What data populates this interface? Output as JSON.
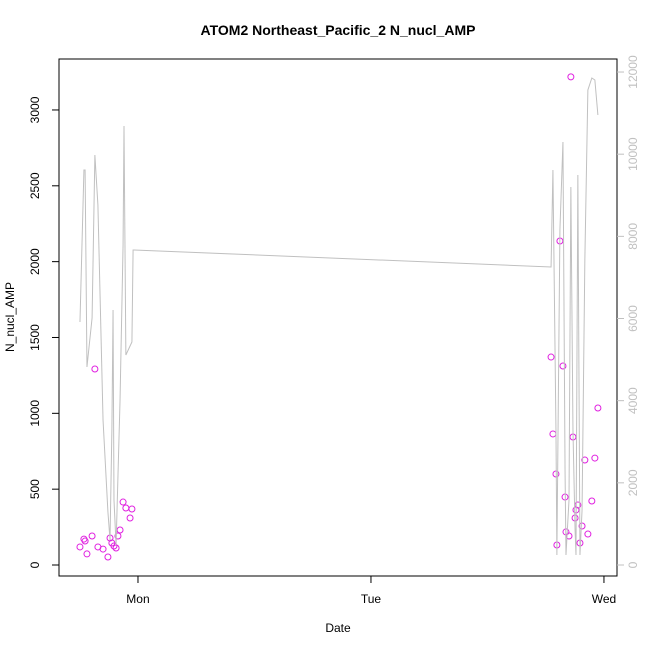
{
  "chart_data": {
    "type": "scatter_line",
    "title": "ATOM2 Northeast_Pacific_2 N_nucl_AMP",
    "x_label": "Date",
    "y_label": "N_nucl_AMP",
    "xlim": [
      0.661,
      3.056
    ],
    "xticks": [
      {
        "value": 1,
        "label": "Mon"
      },
      {
        "value": 2,
        "label": "Tue"
      },
      {
        "value": 3,
        "label": "Wed"
      }
    ],
    "ylim": [
      -72.5,
      3336
    ],
    "yticks": [
      0,
      500,
      1000,
      1500,
      2000,
      2500,
      3000
    ],
    "y2lim": [
      -268,
      12317
    ],
    "y2ticks": [
      0,
      2000,
      4000,
      6000,
      8000,
      10000,
      12000
    ],
    "series": [
      {
        "kind": "points",
        "color": "#e020e0",
        "x": [
          0.751,
          0.768,
          0.773,
          0.781,
          0.803,
          0.815,
          0.828,
          0.85,
          0.871,
          0.88,
          0.888,
          0.897,
          0.906,
          0.914,
          0.923,
          0.936,
          0.948,
          0.966,
          0.974,
          2.773,
          2.781,
          2.794,
          2.798,
          2.811,
          2.824,
          2.833,
          2.837,
          2.85,
          2.858,
          2.867,
          2.876,
          2.88,
          2.888,
          2.897,
          2.906,
          2.918,
          2.931,
          2.948,
          2.961,
          2.974
        ],
        "values": [
          119,
          171,
          158,
          73,
          191,
          1292,
          119,
          105,
          53,
          178,
          145,
          125,
          112,
          191,
          231,
          415,
          376,
          310,
          369,
          1371,
          864,
          600,
          132,
          2136,
          1312,
          448,
          218,
          191,
          3218,
          844,
          310,
          363,
          396,
          145,
          257,
          692,
          204,
          422,
          705,
          1035
        ]
      },
      {
        "kind": "line",
        "color": "#c0c0c0",
        "axis": "y2",
        "x": [
          0.751,
          0.768,
          0.773,
          0.781,
          0.803,
          0.815,
          0.828,
          0.85,
          0.871,
          0.88,
          0.888,
          0.893,
          0.897,
          0.906,
          0.923,
          0.936,
          0.94,
          0.948,
          0.966,
          0.974,
          0.979,
          0.983,
          2.773,
          2.781,
          2.794,
          2.798,
          2.811,
          2.824,
          2.833,
          2.837,
          2.85,
          2.858,
          2.867,
          2.876,
          2.88,
          2.888,
          2.897,
          2.906,
          2.918,
          2.931,
          2.948,
          2.961,
          2.974
        ],
        "values": [
          5915,
          9615,
          9615,
          4820,
          6013,
          9980,
          8763,
          3530,
          1290,
          609,
          3286,
          6207,
          1582,
          487,
          4017,
          7790,
          10686,
          5112,
          5331,
          5428,
          7668,
          7668,
          7254,
          9615,
          3286,
          243,
          8155,
          10297,
          2313,
          243,
          1582,
          9201,
          3286,
          852,
          243,
          9494,
          243,
          1339,
          7425,
          11563,
          11855,
          11806,
          10954
        ]
      }
    ]
  }
}
